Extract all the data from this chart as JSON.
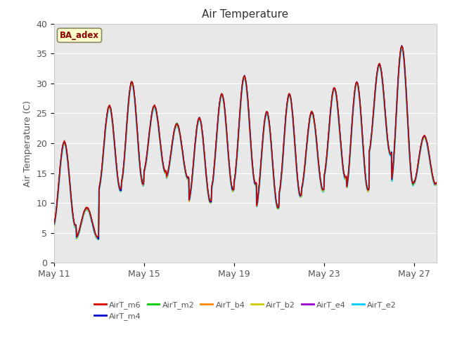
{
  "title": "Air Temperature",
  "ylabel": "Air Temperature (C)",
  "ylim": [
    0,
    40
  ],
  "yticks": [
    0,
    5,
    10,
    15,
    20,
    25,
    30,
    35,
    40
  ],
  "fig_bg_color": "#ffffff",
  "plot_bg_color": "#e8e8e8",
  "grid_color": "#ffffff",
  "series_colors": {
    "AirT_m6": "#dd0000",
    "AirT_m4": "#0000cc",
    "AirT_m2": "#00cc00",
    "AirT_b4": "#ff8800",
    "AirT_b2": "#cccc00",
    "AirT_e4": "#9900cc",
    "AirT_e2": "#00ccff"
  },
  "series_order": [
    "AirT_e2",
    "AirT_e4",
    "AirT_b2",
    "AirT_b4",
    "AirT_m2",
    "AirT_m4",
    "AirT_m6"
  ],
  "legend_order": [
    "AirT_m6",
    "AirT_m4",
    "AirT_m2",
    "AirT_b4",
    "AirT_b2",
    "AirT_e4",
    "AirT_e2"
  ],
  "annotation_text": "BA_adex",
  "annotation_color": "#8b0000",
  "annotation_bg": "#ffffcc",
  "xtick_days": [
    11,
    15,
    19,
    23,
    27
  ],
  "xtick_labels": [
    "May 11",
    "May 15",
    "May 19",
    "May 23",
    "May 27"
  ],
  "n_days": 17,
  "peak_heights": [
    20,
    9,
    26,
    30,
    26,
    23,
    24,
    28,
    31,
    25,
    28,
    25,
    29,
    30,
    33,
    36,
    21
  ],
  "trough_heights": [
    6,
    4,
    12,
    13,
    15,
    14,
    10,
    12,
    13,
    9,
    11,
    12,
    14,
    12,
    18,
    13,
    13
  ],
  "series_offsets": {
    "AirT_m6": 0.3,
    "AirT_m4": 0.2,
    "AirT_m2": 0.25,
    "AirT_b4": 0.1,
    "AirT_b2": 0.0,
    "AirT_e4": 0.15,
    "AirT_e2": 0.0
  },
  "lw_e2": 1.8,
  "lw_other": 1.0
}
